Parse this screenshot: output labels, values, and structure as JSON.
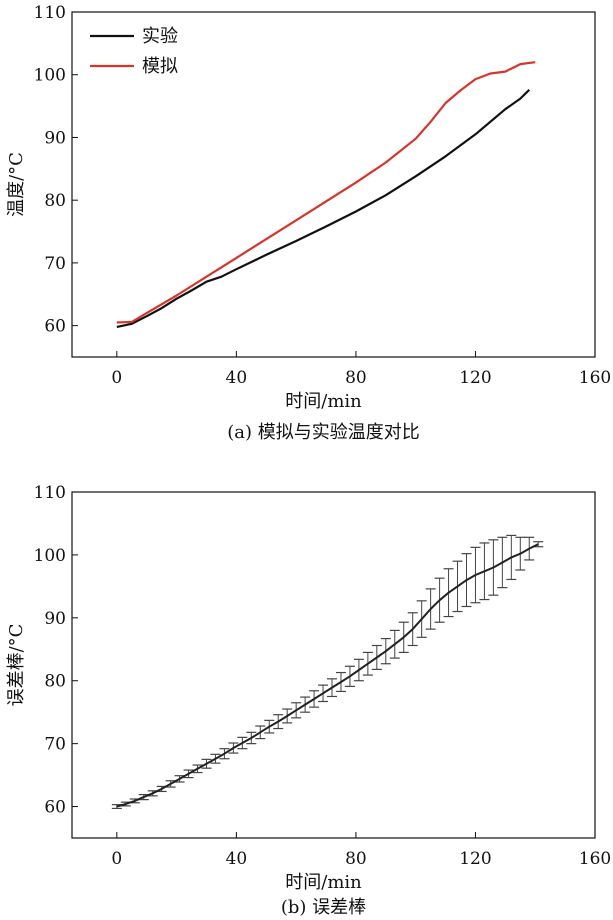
{
  "chart_data": [
    {
      "type": "line",
      "caption": "(a) 模拟与实验温度对比",
      "xlabel": "时间/min",
      "ylabel": "温度/°C",
      "xlim": [
        -15,
        160
      ],
      "ylim": [
        55,
        110
      ],
      "xticks": [
        0,
        40,
        80,
        120,
        160
      ],
      "yticks": [
        60,
        70,
        80,
        90,
        100,
        110
      ],
      "legend_position": "top-left",
      "series": [
        {
          "name": "实验",
          "color": "#111111",
          "x": [
            0,
            5,
            10,
            15,
            20,
            25,
            30,
            35,
            40,
            50,
            60,
            70,
            80,
            90,
            100,
            110,
            120,
            130,
            135,
            138
          ],
          "y": [
            59.8,
            60.3,
            61.5,
            62.8,
            64.3,
            65.6,
            67.0,
            67.8,
            69.0,
            71.3,
            73.5,
            75.8,
            78.2,
            80.8,
            83.8,
            87.0,
            90.5,
            94.5,
            96.2,
            97.6
          ]
        },
        {
          "name": "模拟",
          "color": "#d7342b",
          "x": [
            0,
            5,
            10,
            20,
            30,
            40,
            50,
            60,
            70,
            80,
            90,
            100,
            105,
            110,
            115,
            120,
            125,
            130,
            135,
            140
          ],
          "y": [
            60.5,
            60.6,
            62.0,
            64.8,
            67.8,
            70.8,
            73.8,
            76.8,
            79.8,
            82.8,
            86.0,
            89.8,
            92.5,
            95.5,
            97.5,
            99.3,
            100.2,
            100.5,
            101.7,
            102.0
          ]
        }
      ]
    },
    {
      "type": "line",
      "caption": "(b) 误差棒",
      "xlabel": "时间/min",
      "ylabel": "误差棒/°C",
      "xlim": [
        -15,
        160
      ],
      "ylim": [
        55,
        110
      ],
      "xticks": [
        0,
        40,
        80,
        120,
        160
      ],
      "yticks": [
        60,
        70,
        80,
        90,
        100,
        110
      ],
      "series": [
        {
          "x": [
            0,
            3,
            6,
            9,
            12,
            15,
            18,
            21,
            24,
            27,
            30,
            33,
            36,
            39,
            42,
            45,
            48,
            51,
            54,
            57,
            60,
            63,
            66,
            69,
            72,
            75,
            78,
            81,
            84,
            87,
            90,
            93,
            96,
            99,
            102,
            105,
            108,
            111,
            114,
            117,
            120,
            123,
            126,
            129,
            132,
            135,
            138,
            141
          ],
          "y": [
            60.0,
            60.4,
            60.9,
            61.5,
            62.1,
            62.8,
            63.6,
            64.4,
            65.2,
            66.0,
            66.8,
            67.6,
            68.4,
            69.3,
            70.1,
            70.9,
            71.8,
            72.7,
            73.5,
            74.4,
            75.3,
            76.2,
            77.1,
            78.0,
            78.9,
            79.8,
            80.7,
            81.7,
            82.7,
            83.7,
            84.7,
            85.8,
            86.9,
            88.2,
            89.8,
            91.4,
            92.8,
            94.0,
            95.0,
            96.0,
            96.8,
            97.4,
            98.0,
            98.8,
            99.6,
            100.2,
            101.0,
            101.7
          ],
          "error": [
            0.3,
            0.3,
            0.3,
            0.4,
            0.4,
            0.4,
            0.5,
            0.5,
            0.6,
            0.6,
            0.7,
            0.7,
            0.8,
            0.8,
            0.9,
            0.9,
            1.0,
            1.0,
            1.1,
            1.1,
            1.2,
            1.2,
            1.3,
            1.3,
            1.4,
            1.5,
            1.6,
            1.7,
            1.8,
            1.9,
            2.0,
            2.2,
            2.4,
            2.6,
            2.9,
            3.2,
            3.5,
            3.8,
            4.0,
            4.2,
            4.4,
            4.5,
            4.4,
            4.0,
            3.5,
            2.6,
            1.8,
            0.4
          ]
        }
      ]
    }
  ]
}
